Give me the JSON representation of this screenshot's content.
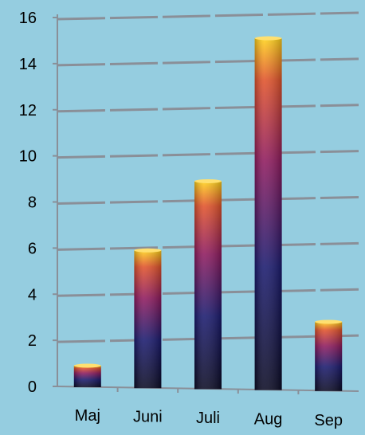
{
  "chart_data": {
    "type": "bar",
    "categories": [
      "Maj",
      "Juni",
      "Juli",
      "Aug",
      "Sep"
    ],
    "values": [
      0.9,
      5.9,
      8.9,
      15.1,
      2.8
    ],
    "ylim": [
      0,
      16
    ],
    "yticks": [
      "0",
      "2",
      "4",
      "6",
      "8",
      "10",
      "12",
      "14",
      "16"
    ],
    "grid": true,
    "legend": "none",
    "colors": {
      "background": "#95cde0",
      "grid": "#8a8f98",
      "bar_bottom": "#0b0b24",
      "bar_mid1": "#1a1a6e",
      "bar_mid2": "#8e1a5e",
      "bar_mid3": "#e0522a",
      "bar_top": "#ffd21a"
    }
  }
}
